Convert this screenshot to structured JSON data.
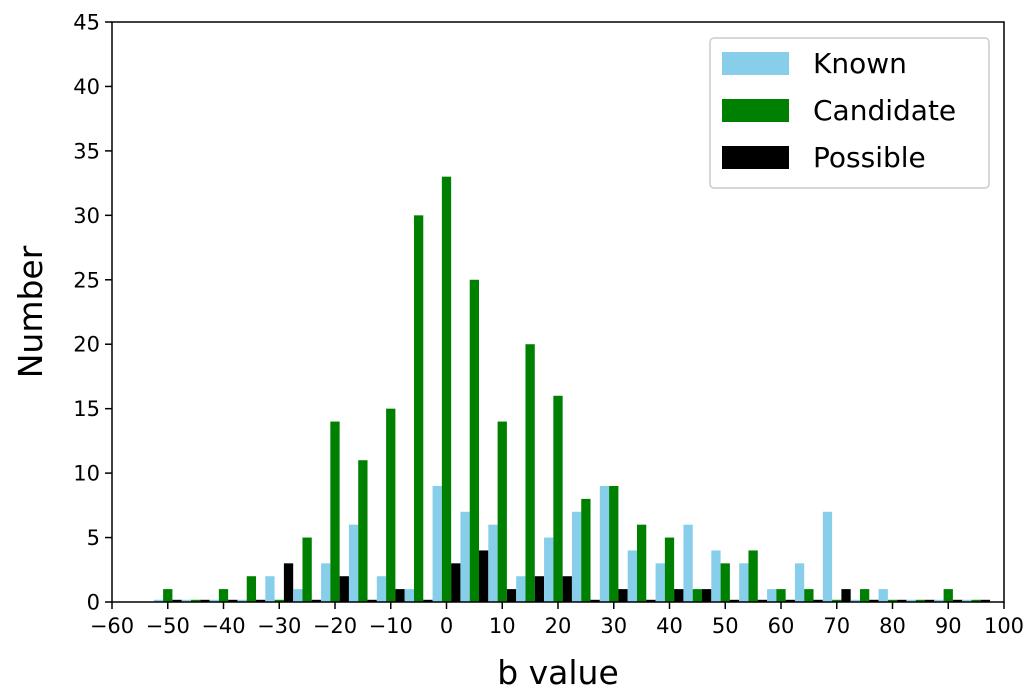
{
  "chart_data": {
    "type": "bar",
    "xlabel": "b value",
    "ylabel": "Number",
    "xlim": [
      -60,
      100
    ],
    "ylim": [
      0,
      45
    ],
    "x_ticks": [
      "−60",
      "−50",
      "−40",
      "−30",
      "−20",
      "−10",
      "0",
      "10",
      "20",
      "30",
      "40",
      "50",
      "60",
      "70",
      "80",
      "90",
      "100"
    ],
    "y_ticks": [
      "0",
      "5",
      "10",
      "15",
      "20",
      "25",
      "30",
      "35",
      "40",
      "45"
    ],
    "bin_width": 5,
    "bin_centers": [
      -50,
      -45,
      -40,
      -35,
      -30,
      -25,
      -20,
      -15,
      -10,
      -5,
      0,
      5,
      10,
      15,
      20,
      25,
      30,
      35,
      40,
      45,
      50,
      55,
      60,
      65,
      70,
      75,
      80,
      85,
      90,
      95
    ],
    "legend_position": "top-right",
    "grid": false,
    "series": [
      {
        "name": "Known",
        "color": "#87ceeb",
        "values": [
          0,
          0,
          0,
          0,
          2,
          1,
          3,
          6,
          2,
          1,
          9,
          7,
          6,
          2,
          5,
          7,
          9,
          4,
          3,
          6,
          4,
          3,
          1,
          3,
          7,
          0,
          1,
          0,
          0,
          0
        ]
      },
      {
        "name": "Candidate",
        "color": "#008000",
        "values": [
          1,
          0,
          1,
          2,
          0,
          5,
          14,
          11,
          15,
          30,
          33,
          25,
          14,
          20,
          16,
          8,
          9,
          6,
          5,
          1,
          3,
          4,
          1,
          1,
          0,
          1,
          0,
          0,
          1,
          0
        ]
      },
      {
        "name": "Possible",
        "color": "#000000",
        "values": [
          0,
          0,
          0,
          0,
          3,
          0,
          2,
          0,
          1,
          0,
          3,
          4,
          1,
          2,
          2,
          0,
          1,
          0,
          1,
          1,
          0,
          0,
          0,
          0,
          1,
          0,
          0,
          0,
          0,
          0
        ]
      }
    ]
  }
}
